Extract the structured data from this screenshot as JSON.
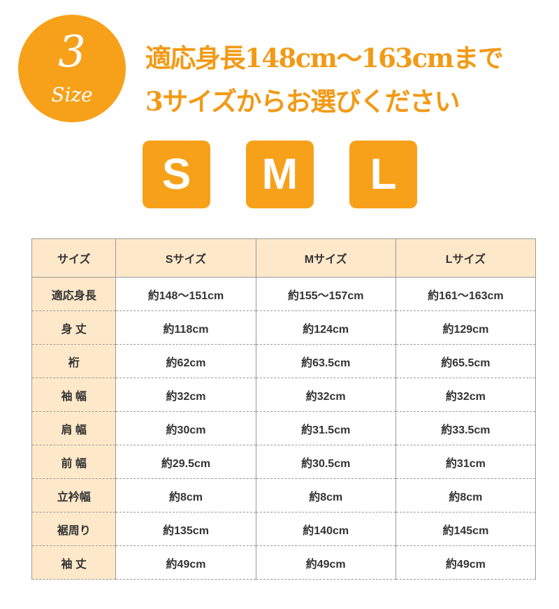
{
  "badge": {
    "number": "3",
    "word": "Size"
  },
  "headline": {
    "line1": "適応身長148cm〜163cmまで",
    "line2": "3サイズからお選びください"
  },
  "size_buttons": [
    "S",
    "M",
    "L"
  ],
  "colors": {
    "accent": "#f7a11a",
    "header_bg": "#fde8c9"
  },
  "table": {
    "headers": [
      "サイズ",
      "Sサイズ",
      "Mサイズ",
      "Lサイズ"
    ],
    "rows": [
      [
        "適応身長",
        "約148〜151cm",
        "約155〜157cm",
        "約161〜163cm"
      ],
      [
        "身 丈",
        "約118cm",
        "約124cm",
        "約129cm"
      ],
      [
        "裄",
        "約62cm",
        "約63.5cm",
        "約65.5cm"
      ],
      [
        "袖 幅",
        "約32cm",
        "約32cm",
        "約32cm"
      ],
      [
        "肩 幅",
        "約30cm",
        "約31.5cm",
        "約33.5cm"
      ],
      [
        "前 幅",
        "約29.5cm",
        "約30.5cm",
        "約31cm"
      ],
      [
        "立衿幅",
        "約8cm",
        "約8cm",
        "約8cm"
      ],
      [
        "裾周り",
        "約135cm",
        "約140cm",
        "約145cm"
      ],
      [
        "袖 丈",
        "約49cm",
        "約49cm",
        "約49cm"
      ]
    ]
  }
}
